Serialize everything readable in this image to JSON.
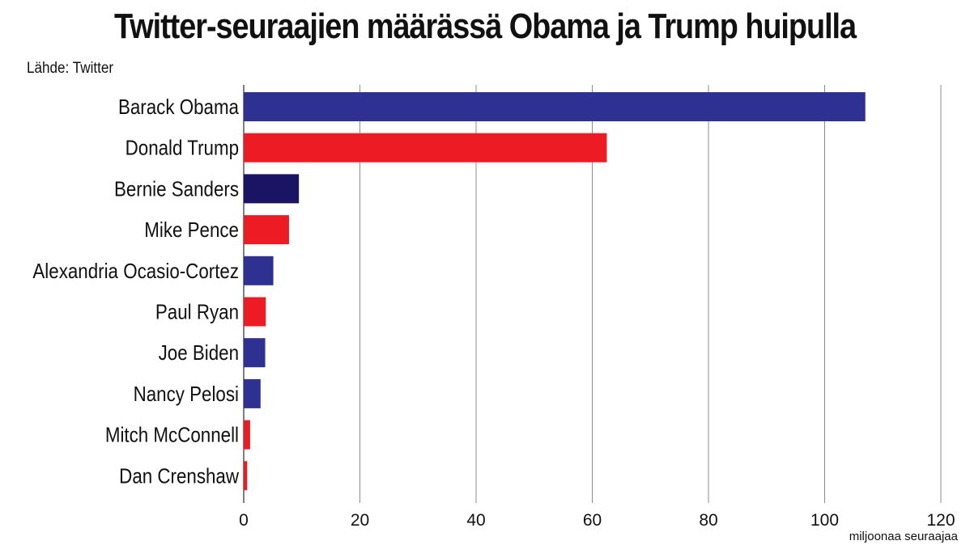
{
  "title": "Twitter-seuraajien määrässä Obama ja Trump huipulla",
  "source": "Lähde: Twitter",
  "chart_data": {
    "type": "bar",
    "orientation": "horizontal",
    "title": "Twitter-seuraajien määrässä Obama ja Trump huipulla",
    "xlabel": "miljoonaa seuraajaa",
    "ylabel": "",
    "xlim": [
      0,
      120
    ],
    "xticks": [
      0,
      20,
      40,
      60,
      80,
      100,
      120
    ],
    "grid": true,
    "categories": [
      "Barack Obama",
      "Donald Trump",
      "Bernie Sanders",
      "Mike Pence",
      "Alexandria Ocasio-Cortez",
      "Paul Ryan",
      "Joe Biden",
      "Nancy Pelosi",
      "Mitch McConnell",
      "Dan Crenshaw"
    ],
    "values": [
      107,
      62.5,
      9.5,
      7.8,
      5.1,
      3.8,
      3.7,
      2.9,
      1.1,
      0.6
    ],
    "colors": [
      "#2e3192",
      "#ed1c24",
      "#1b1464",
      "#ed1c24",
      "#2e3192",
      "#ed1c24",
      "#2e3192",
      "#2e3192",
      "#ed1c24",
      "#ed1c24"
    ]
  }
}
